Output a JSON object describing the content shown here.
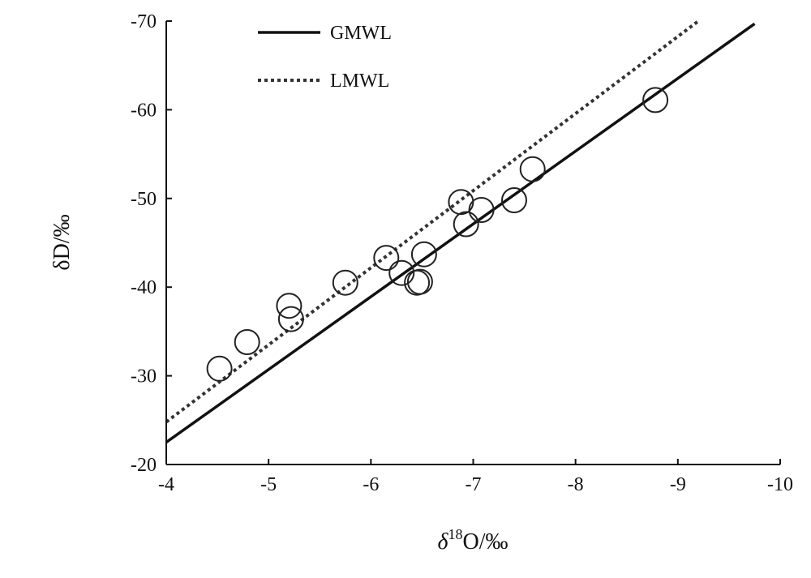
{
  "chart_data": {
    "type": "scatter",
    "xlim": [
      -4,
      -10
    ],
    "ylim": [
      -20,
      -70
    ],
    "x_reversed": true,
    "y_reversed": true,
    "x_ticks": [
      -4,
      -5,
      -6,
      -7,
      -8,
      -9,
      -10
    ],
    "y_ticks": [
      -20,
      -30,
      -40,
      -50,
      -60,
      -70
    ],
    "xlabel": {
      "prefix": "δ",
      "superscript": "18",
      "suffix": "O/‰"
    },
    "ylabel": "δD/‰",
    "legend_position": "top-left",
    "grid": false,
    "series": [
      {
        "name": "GMWL",
        "kind": "line",
        "style": "solid",
        "color": "#111111",
        "points": [
          [
            -4.0,
            -22.5
          ],
          [
            -9.75,
            -69.7
          ]
        ]
      },
      {
        "name": "LMWL",
        "kind": "line",
        "style": "dotted",
        "color": "#333333",
        "points": [
          [
            -4.0,
            -24.8
          ],
          [
            -9.2,
            -70.0
          ]
        ]
      },
      {
        "kind": "scatter",
        "marker": "open-circle",
        "color": "#222222",
        "points": [
          [
            -4.52,
            -30.8
          ],
          [
            -4.79,
            -33.8
          ],
          [
            -5.2,
            -37.9
          ],
          [
            -5.22,
            -36.4
          ],
          [
            -5.75,
            -40.5
          ],
          [
            -6.15,
            -43.3
          ],
          [
            -6.3,
            -41.6
          ],
          [
            -6.45,
            -40.5
          ],
          [
            -6.48,
            -40.6
          ],
          [
            -6.52,
            -43.7
          ],
          [
            -6.88,
            -49.6
          ],
          [
            -6.93,
            -47.1
          ],
          [
            -7.08,
            -48.7
          ],
          [
            -7.4,
            -49.8
          ],
          [
            -7.58,
            -53.3
          ],
          [
            -8.78,
            -61.1
          ]
        ]
      }
    ]
  }
}
